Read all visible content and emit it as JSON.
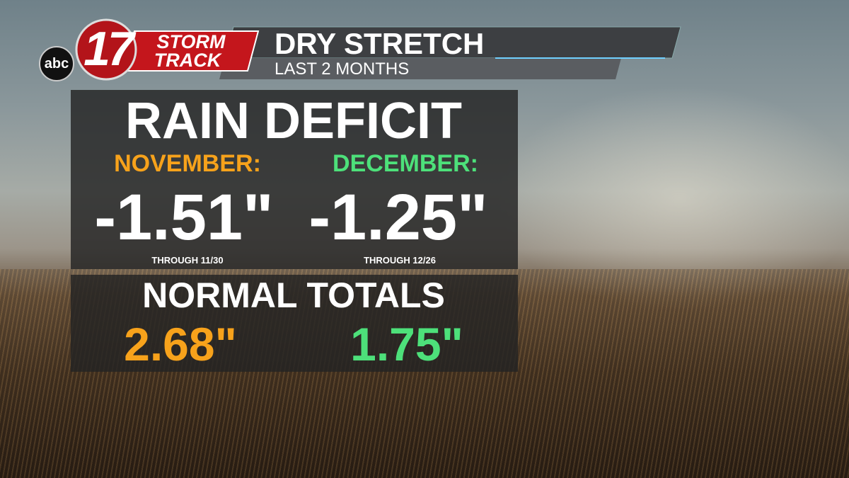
{
  "logo": {
    "network": "abc",
    "channel": "17",
    "brand_line1": "STORM",
    "brand_line2": "TRACK"
  },
  "header": {
    "title": "DRY STRETCH",
    "subtitle": "LAST 2 MONTHS"
  },
  "deficit": {
    "title": "RAIN DEFICIT",
    "columns": [
      {
        "month": "NOVEMBER:",
        "value": "-1.51\"",
        "note": "THROUGH 11/30"
      },
      {
        "month": "DECEMBER:",
        "value": "-1.25\"",
        "note": "THROUGH 12/26"
      }
    ]
  },
  "normals": {
    "title": "NORMAL TOTALS",
    "values": [
      "2.68\"",
      "1.75\""
    ]
  }
}
